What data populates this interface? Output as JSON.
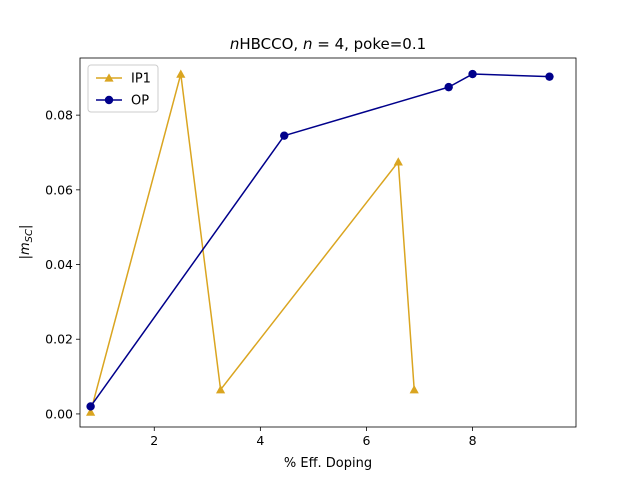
{
  "chart_data": {
    "type": "line",
    "title": "nHBCCO, n = 4, poke=0.1",
    "title_parts": {
      "italic_n1": "n",
      "main": "HBCCO, ",
      "italic_n2": "n",
      "rest": " = 4, poke=0.1"
    },
    "xlabel": "% Eff. Doping",
    "ylabel": "|m_SC|",
    "ylabel_parts": {
      "open": "|",
      "m": "m",
      "sub": "SC",
      "close": "|"
    },
    "xlim": [
      0.6,
      9.95
    ],
    "ylim": [
      -0.0035,
      0.0953
    ],
    "xticks": [
      2,
      4,
      6,
      8
    ],
    "yticks": [
      0.0,
      0.02,
      0.04,
      0.06,
      0.08
    ],
    "ytick_labels": [
      "0.00",
      "0.02",
      "0.04",
      "0.06",
      "0.08"
    ],
    "xtick_labels": [
      "2",
      "4",
      "6",
      "8"
    ],
    "grid": false,
    "legend_position": "upper-left",
    "series": [
      {
        "name": "IP1",
        "color": "#DAA520",
        "marker": "triangle",
        "x": [
          0.8,
          2.5,
          3.25,
          6.6,
          6.9
        ],
        "y": [
          0.0005,
          0.091,
          0.0065,
          0.0675,
          0.0065
        ]
      },
      {
        "name": "OP",
        "color": "#00008B",
        "marker": "circle",
        "x": [
          0.8,
          4.45,
          7.55,
          8.0,
          9.45
        ],
        "y": [
          0.002,
          0.0745,
          0.0875,
          0.091,
          0.0903
        ]
      }
    ]
  }
}
